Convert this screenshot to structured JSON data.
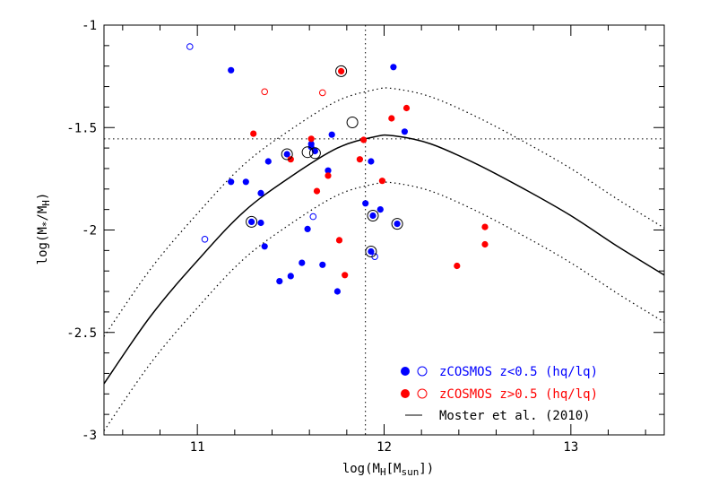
{
  "chart_data": {
    "type": "scatter",
    "xlabel": "log(M_H[M_sun])",
    "ylabel": "log(M_*/M_H)",
    "xlim": [
      10.5,
      13.5
    ],
    "ylim": [
      -3,
      -1
    ],
    "x_ticks": [
      11,
      12,
      13
    ],
    "y_ticks": [
      -1,
      -1.5,
      -2,
      -2.5,
      -3
    ],
    "x_tick_labels": [
      "11",
      "12",
      "13"
    ],
    "y_tick_labels": [
      "-1",
      "-1.5",
      "-2",
      "-2.5",
      "-3"
    ],
    "reference_lines": {
      "vertical_x": 11.9,
      "horizontal_y": -1.555
    },
    "colors": {
      "low_z": "#0000ff",
      "high_z": "#ff0000",
      "model": "#000000",
      "frame": "#000000"
    },
    "series": [
      {
        "name": "zCOSMOS z<0.5 hq",
        "color": "#0000ff",
        "marker": "filled",
        "points": [
          [
            11.18,
            -1.22
          ],
          [
            12.05,
            -1.205
          ],
          [
            11.72,
            -1.535
          ],
          [
            11.61,
            -1.58
          ],
          [
            11.61,
            -1.595
          ],
          [
            11.63,
            -1.615
          ],
          [
            12.11,
            -1.52
          ],
          [
            11.18,
            -1.765
          ],
          [
            11.26,
            -1.765
          ],
          [
            11.38,
            -1.665
          ],
          [
            11.48,
            -1.63
          ],
          [
            11.34,
            -1.82
          ],
          [
            11.7,
            -1.71
          ],
          [
            11.93,
            -1.665
          ],
          [
            11.9,
            -1.87
          ],
          [
            11.94,
            -1.93
          ],
          [
            11.98,
            -1.9
          ],
          [
            11.29,
            -1.96
          ],
          [
            11.34,
            -1.965
          ],
          [
            11.36,
            -2.08
          ],
          [
            11.59,
            -1.995
          ],
          [
            11.44,
            -2.25
          ],
          [
            11.5,
            -2.225
          ],
          [
            11.56,
            -2.16
          ],
          [
            11.67,
            -2.17
          ],
          [
            11.75,
            -2.3
          ],
          [
            11.93,
            -2.105
          ],
          [
            12.07,
            -1.97
          ]
        ]
      },
      {
        "name": "zCOSMOS z<0.5 lq",
        "color": "#0000ff",
        "marker": "open",
        "points": [
          [
            10.96,
            -1.105
          ],
          [
            11.04,
            -2.045
          ],
          [
            11.62,
            -1.935
          ],
          [
            11.95,
            -2.13
          ]
        ]
      },
      {
        "name": "zCOSMOS z>0.5 hq",
        "color": "#ff0000",
        "marker": "filled",
        "points": [
          [
            11.77,
            -1.225
          ],
          [
            12.12,
            -1.405
          ],
          [
            12.04,
            -1.455
          ],
          [
            11.3,
            -1.53
          ],
          [
            11.61,
            -1.555
          ],
          [
            11.89,
            -1.56
          ],
          [
            11.5,
            -1.655
          ],
          [
            11.7,
            -1.735
          ],
          [
            11.87,
            -1.655
          ],
          [
            11.99,
            -1.76
          ],
          [
            11.64,
            -1.81
          ],
          [
            12.54,
            -1.985
          ],
          [
            11.76,
            -2.05
          ],
          [
            12.54,
            -2.07
          ],
          [
            11.79,
            -2.22
          ],
          [
            12.39,
            -2.175
          ]
        ]
      },
      {
        "name": "zCOSMOS z>0.5 lq",
        "color": "#ff0000",
        "marker": "open",
        "points": [
          [
            11.36,
            -1.325
          ],
          [
            11.67,
            -1.33
          ]
        ]
      }
    ],
    "circled_points": [
      [
        11.77,
        -1.225
      ],
      [
        11.83,
        -1.475
      ],
      [
        11.48,
        -1.63
      ],
      [
        11.59,
        -1.62
      ],
      [
        11.63,
        -1.625
      ],
      [
        11.29,
        -1.96
      ],
      [
        11.94,
        -1.93
      ],
      [
        12.07,
        -1.97
      ],
      [
        11.93,
        -2.105
      ]
    ],
    "model_curve": {
      "name": "Moster et al. (2010)",
      "x": [
        10.5,
        10.75,
        11.0,
        11.25,
        11.5,
        11.75,
        11.95,
        12.05,
        12.25,
        12.5,
        12.75,
        13.0,
        13.25,
        13.5
      ],
      "y": [
        -2.75,
        -2.42,
        -2.15,
        -1.91,
        -1.74,
        -1.6,
        -1.545,
        -1.54,
        -1.58,
        -1.68,
        -1.8,
        -1.93,
        -2.08,
        -2.22
      ],
      "scatter_offset": 0.23
    },
    "legend": {
      "position": "bottom-right",
      "entries": [
        {
          "label": "zCOSMOS z<0.5 (hq/lq)",
          "color": "#0000ff",
          "marker": "filled-open"
        },
        {
          "label": "zCOSMOS z>0.5 (hq/lq)",
          "color": "#ff0000",
          "marker": "filled-open"
        },
        {
          "label": "Moster et al. (2010)",
          "color": "#000000",
          "marker": "line"
        }
      ]
    }
  }
}
